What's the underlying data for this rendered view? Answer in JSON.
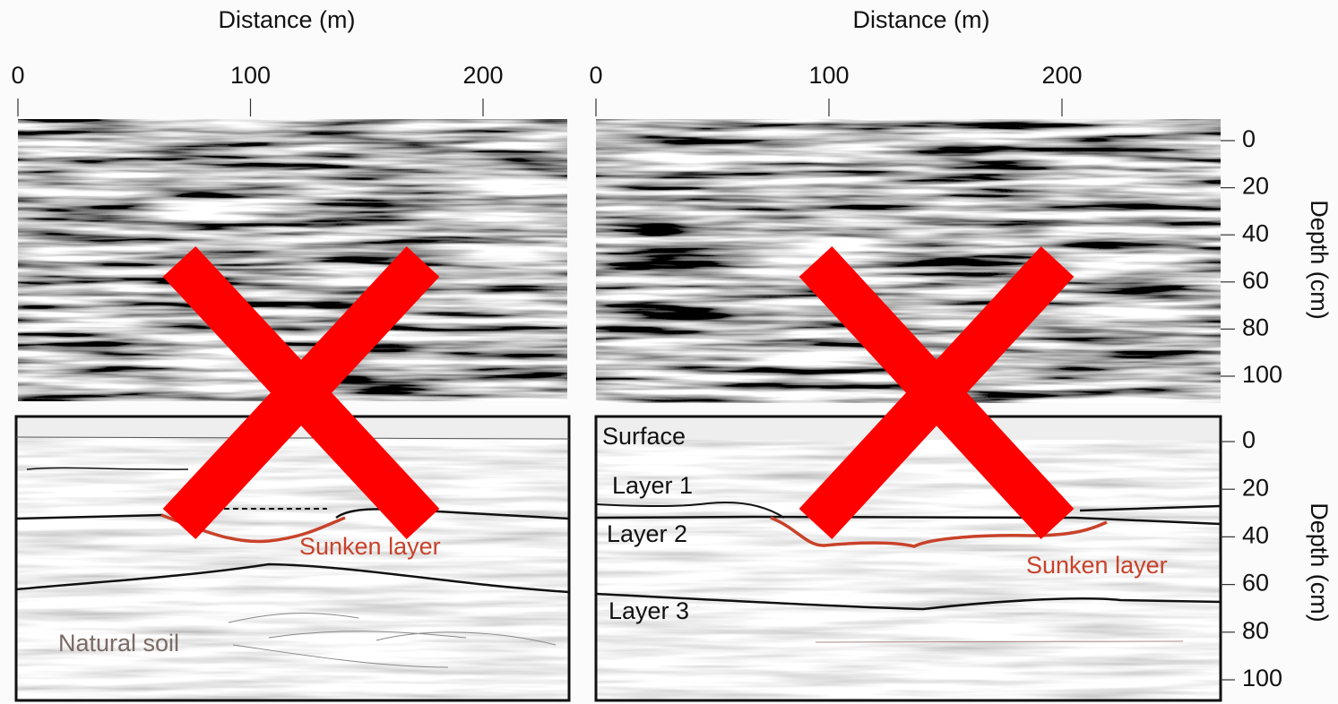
{
  "left": {
    "x_axis_label": "Distance (m)",
    "x_ticks": [
      0,
      100,
      200
    ],
    "annotations": {
      "sunken_layer": "Sunken layer",
      "natural_soil": "Natural soil"
    }
  },
  "right": {
    "x_axis_label": "Distance (m)",
    "x_ticks": [
      0,
      100,
      200
    ],
    "depth_axis_label_top": "Depth (cm)",
    "depth_ticks_top": [
      0,
      20,
      40,
      60,
      80,
      100
    ],
    "depth_axis_label_bottom": "Depth (cm)",
    "depth_ticks_bottom": [
      0,
      20,
      40,
      60,
      80,
      100
    ],
    "annotations": {
      "surface": "Surface",
      "layer_1": "Layer 1",
      "layer_2": "Layer 2",
      "layer_3": "Layer 3",
      "sunken_layer": "Sunken layer"
    }
  }
}
